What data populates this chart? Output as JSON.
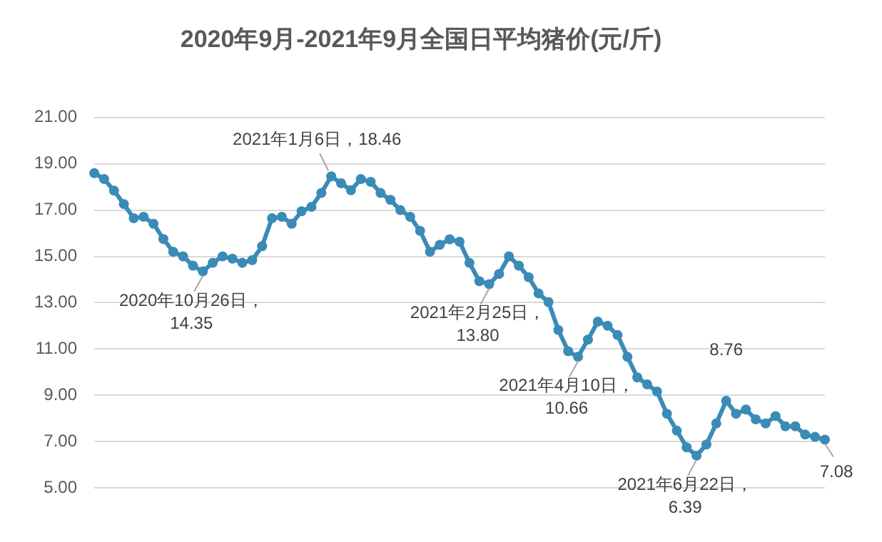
{
  "chart_data": {
    "type": "line",
    "title": "2020年9月-2021年9月全国日平均猪价(元/斤)",
    "categories": [
      null,
      null,
      null,
      null,
      null,
      null,
      null,
      null,
      null,
      null,
      null,
      null,
      null,
      null,
      null,
      null,
      null,
      null,
      null,
      null,
      null,
      null,
      null,
      null,
      null,
      null,
      null,
      null,
      null,
      null,
      null,
      null,
      null,
      null,
      null,
      null,
      null,
      null,
      null,
      null,
      null,
      null,
      null,
      null,
      null,
      null,
      null,
      null,
      null,
      null,
      null,
      null,
      null,
      null,
      null,
      null,
      null,
      null,
      null,
      null,
      null,
      null,
      null,
      null,
      null,
      null,
      null,
      null,
      null,
      null,
      null,
      null,
      null,
      null,
      null
    ],
    "series": [
      {
        "color": "#3b8bb7",
        "values": [
          18.6,
          18.34,
          17.84,
          17.26,
          16.65,
          16.71,
          16.41,
          15.75,
          15.2,
          15.0,
          14.6,
          14.35,
          14.72,
          15.0,
          14.9,
          14.72,
          14.84,
          15.44,
          16.65,
          16.71,
          16.41,
          16.95,
          17.14,
          17.74,
          18.46,
          18.16,
          17.86,
          18.34,
          18.22,
          17.74,
          17.44,
          17.0,
          16.71,
          16.1,
          15.2,
          15.5,
          15.74,
          15.63,
          14.72,
          13.93,
          13.8,
          14.24,
          15.0,
          14.6,
          14.1,
          13.4,
          13.03,
          11.82,
          10.9,
          10.66,
          11.4,
          12.18,
          12.0,
          11.6,
          10.66,
          9.77,
          9.47,
          9.16,
          8.2,
          7.47,
          6.75,
          6.39,
          6.87,
          7.78,
          8.76,
          8.2,
          8.38,
          7.96,
          7.78,
          8.1,
          7.66,
          7.66,
          7.3,
          7.2,
          7.08
        ]
      }
    ],
    "ylim": [
      5,
      21
    ],
    "yticks": [
      {
        "value": 5,
        "label": "5.00"
      },
      {
        "value": 7,
        "label": "7.00"
      },
      {
        "value": 9,
        "label": "9.00"
      },
      {
        "value": 11,
        "label": "11.00"
      },
      {
        "value": 13,
        "label": "13.00"
      },
      {
        "value": 15,
        "label": "15.00"
      },
      {
        "value": 17,
        "label": "17.00"
      },
      {
        "value": 19,
        "label": "19.00"
      },
      {
        "value": 21,
        "label": "21.00"
      }
    ],
    "grid": "y",
    "legend": false,
    "marker": "circle",
    "line_style": "solid",
    "tick_labels": "y",
    "annotations": [
      {
        "text": "2020年10月26日，14.35",
        "y": 14.35
      },
      "2021年1月6日，18.46",
      {
        "text": "2021年2月25日，13.80",
        "y": 13.8
      },
      {
        "text": "2021年4月10日，10.66",
        "y": 10.66
      },
      {
        "text": "2021年6月22日，6.39",
        "y": 6.39
      },
      {
        "text": "8.76",
        "y": 8.76
      },
      {
        "text": "7.08",
        "y": 7.08
      }
    ]
  }
}
